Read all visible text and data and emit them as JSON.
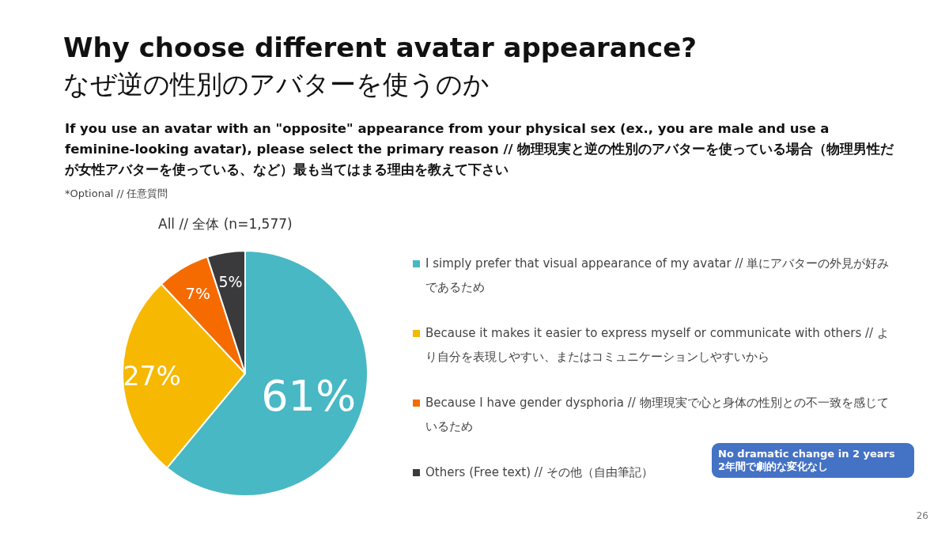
{
  "chart_data": {
    "type": "pie",
    "title": "Why choose different avatar appearance?",
    "subtitle": "なぜ逆の性別のアバターを使うのか",
    "legend_title": "All // 全体 (n=1,577)",
    "categories": [
      "I simply prefer that visual appearance of my avatar // 単にアバターの外見が好みであるため",
      "Because it makes it easier to express myself or communicate with others // より自分を表現しやすい、またはコミュニケーションしやすいから",
      "Because I have gender dysphoria // 物理現実で心と身体の性別との不一致を感じているため",
      "Others (Free text) // その他（自由筆記）"
    ],
    "values": [
      61,
      27,
      7,
      5
    ],
    "colors": [
      "#47b8c4",
      "#f6b800",
      "#f56b00",
      "#3a3a3c"
    ],
    "value_labels": [
      "61%",
      "27%",
      "7%",
      "5%"
    ],
    "legend": "right",
    "annotations": [
      "If you use an avatar with an \"opposite\" appearance from your physical sex (ex., you are male and use a feminine-looking avatar), please select the primary reason // 物理現実と逆の性別のアバターを使っている場合（物理男性だが女性アバターを使っている、など）最も当てはまる理由を教えて下さい",
      "*Optional // 任意質問",
      "No dramatic change in 2 years\n2年間で劇的な変化なし",
      "26"
    ]
  }
}
